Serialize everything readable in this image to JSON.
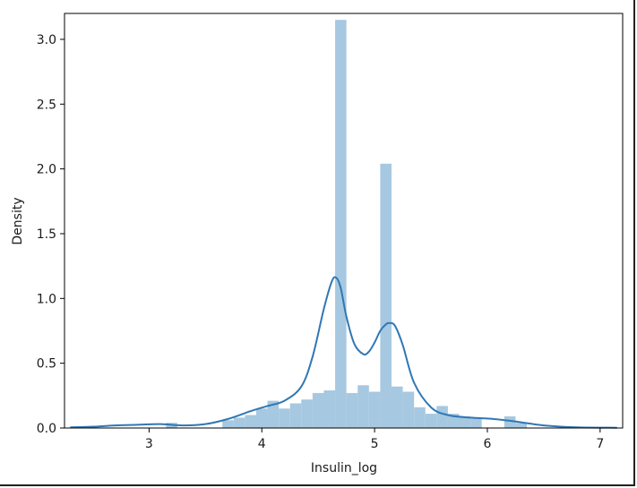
{
  "chart_data": {
    "type": "histogram",
    "title": "",
    "xlabel": "Insulin_log",
    "ylabel": "Density",
    "xlim": [
      2.25,
      7.2
    ],
    "ylim": [
      0,
      3.2
    ],
    "xticks": [
      3,
      4,
      5,
      6,
      7
    ],
    "yticks": [
      0.0,
      0.5,
      1.0,
      1.5,
      2.0,
      2.5,
      3.0
    ],
    "xtick_labels": [
      "3",
      "4",
      "5",
      "6",
      "7"
    ],
    "ytick_labels": [
      "0.0",
      "0.5",
      "1.0",
      "1.5",
      "2.0",
      "2.5",
      "3.0"
    ],
    "grid": false,
    "bar_color": "#a6c8e0",
    "line_color": "#3077b4",
    "bins": [
      {
        "x0": 2.3,
        "x1": 2.4,
        "density": 0.01
      },
      {
        "x0": 3.15,
        "x1": 3.25,
        "density": 0.04
      },
      {
        "x0": 3.65,
        "x1": 3.75,
        "density": 0.06
      },
      {
        "x0": 3.75,
        "x1": 3.85,
        "density": 0.08
      },
      {
        "x0": 3.85,
        "x1": 3.95,
        "density": 0.1
      },
      {
        "x0": 3.95,
        "x1": 4.05,
        "density": 0.15
      },
      {
        "x0": 4.05,
        "x1": 4.15,
        "density": 0.21
      },
      {
        "x0": 4.15,
        "x1": 4.25,
        "density": 0.15
      },
      {
        "x0": 4.25,
        "x1": 4.35,
        "density": 0.19
      },
      {
        "x0": 4.35,
        "x1": 4.45,
        "density": 0.22
      },
      {
        "x0": 4.45,
        "x1": 4.55,
        "density": 0.27
      },
      {
        "x0": 4.55,
        "x1": 4.65,
        "density": 0.29
      },
      {
        "x0": 4.65,
        "x1": 4.75,
        "density": 3.15
      },
      {
        "x0": 4.75,
        "x1": 4.85,
        "density": 0.27
      },
      {
        "x0": 4.85,
        "x1": 4.95,
        "density": 0.33
      },
      {
        "x0": 4.95,
        "x1": 5.05,
        "density": 0.28
      },
      {
        "x0": 5.05,
        "x1": 5.15,
        "density": 2.04
      },
      {
        "x0": 5.15,
        "x1": 5.25,
        "density": 0.32
      },
      {
        "x0": 5.25,
        "x1": 5.35,
        "density": 0.28
      },
      {
        "x0": 5.35,
        "x1": 5.45,
        "density": 0.16
      },
      {
        "x0": 5.45,
        "x1": 5.55,
        "density": 0.11
      },
      {
        "x0": 5.55,
        "x1": 5.65,
        "density": 0.17
      },
      {
        "x0": 5.65,
        "x1": 5.75,
        "density": 0.11
      },
      {
        "x0": 5.75,
        "x1": 5.85,
        "density": 0.09
      },
      {
        "x0": 5.85,
        "x1": 5.95,
        "density": 0.08
      },
      {
        "x0": 6.15,
        "x1": 6.25,
        "density": 0.09
      },
      {
        "x0": 6.25,
        "x1": 6.35,
        "density": 0.04
      }
    ],
    "kde": {
      "x": [
        2.3,
        2.5,
        2.7,
        2.9,
        3.1,
        3.3,
        3.5,
        3.7,
        3.9,
        4.05,
        4.2,
        4.35,
        4.45,
        4.55,
        4.62,
        4.66,
        4.7,
        4.75,
        4.82,
        4.9,
        4.95,
        5.0,
        5.05,
        5.1,
        5.13,
        5.18,
        5.25,
        5.35,
        5.5,
        5.65,
        5.85,
        6.05,
        6.25,
        6.5,
        6.8,
        7.15
      ],
      "y": [
        0.005,
        0.01,
        0.02,
        0.025,
        0.03,
        0.02,
        0.03,
        0.07,
        0.13,
        0.17,
        0.21,
        0.32,
        0.55,
        0.92,
        1.13,
        1.16,
        1.08,
        0.86,
        0.65,
        0.57,
        0.59,
        0.66,
        0.75,
        0.8,
        0.81,
        0.79,
        0.64,
        0.35,
        0.16,
        0.1,
        0.08,
        0.07,
        0.05,
        0.02,
        0.005,
        0.002
      ]
    }
  }
}
